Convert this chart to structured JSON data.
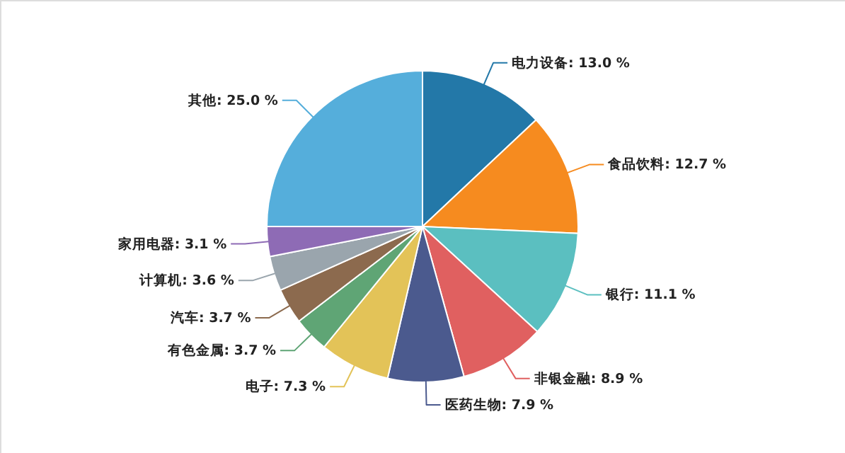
{
  "chart_data": {
    "type": "pie",
    "categories": [
      "电力设备",
      "食品饮料",
      "银行",
      "非银金融",
      "医药生物",
      "电子",
      "有色金属",
      "汽车",
      "计算机",
      "家用电器",
      "其他"
    ],
    "values": [
      13.0,
      12.7,
      11.1,
      8.9,
      7.9,
      7.3,
      3.7,
      3.7,
      3.6,
      3.1,
      25.0
    ],
    "value_labels": [
      ": 13.0 %",
      ": 12.7 %",
      ": 11.1 %",
      ": 8.9 %",
      ": 7.9 %",
      ": 7.3 %",
      ": 3.7 %",
      ": 3.7 %",
      ": 3.6 %",
      ": 3.1 %",
      ": 25.0 %"
    ],
    "colors": [
      "#2378a8",
      "#f68b1f",
      "#5bbfc0",
      "#e06060",
      "#4b5a8e",
      "#e3c358",
      "#5fa575",
      "#8c6a4e",
      "#9aa5ad",
      "#8e6bb5",
      "#55aedb"
    ]
  }
}
